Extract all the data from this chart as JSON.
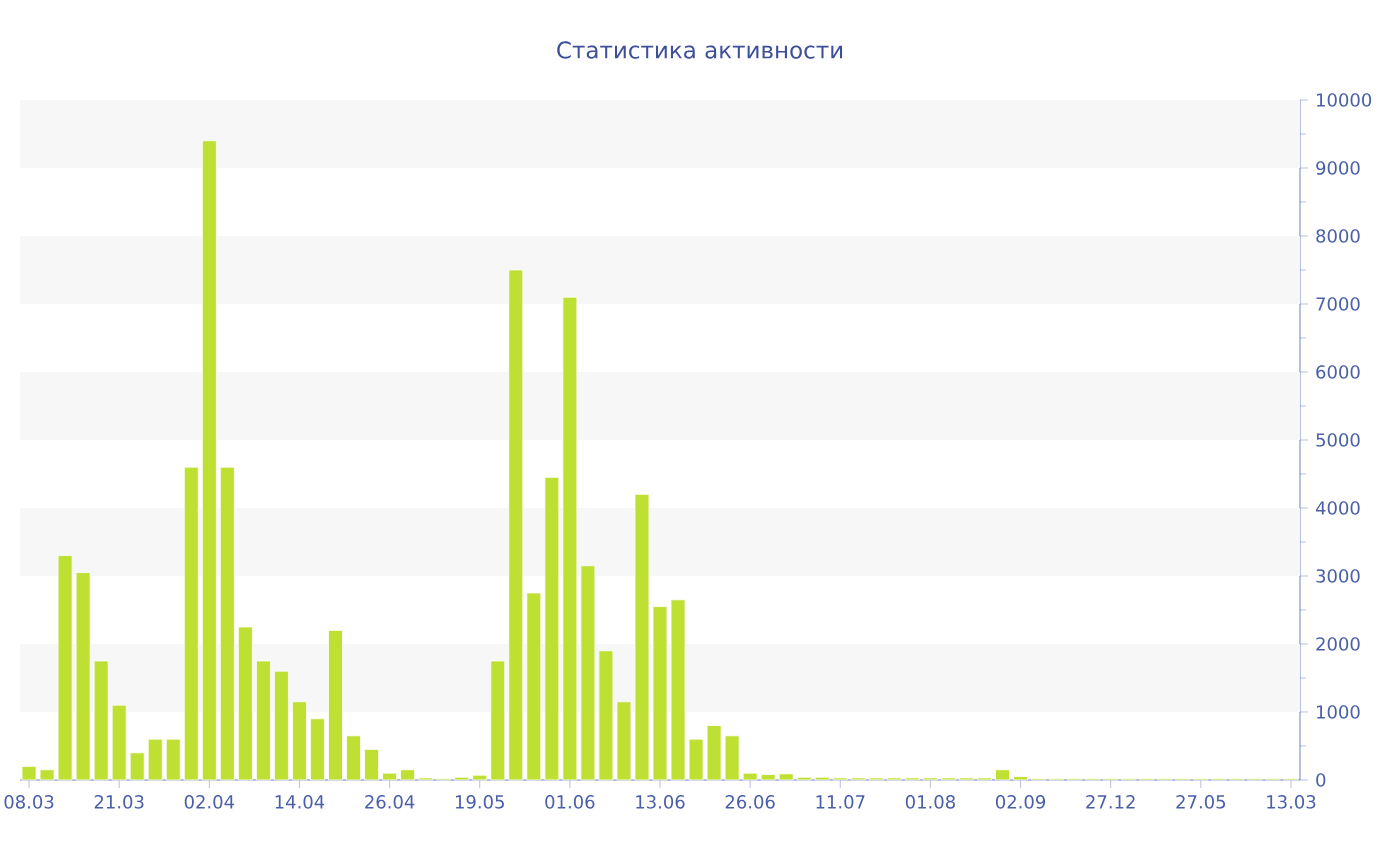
{
  "chart_data": {
    "type": "bar",
    "title": "Статистика активности",
    "categories": [
      "08.03",
      null,
      null,
      null,
      null,
      "21.03",
      null,
      null,
      null,
      null,
      "02.04",
      null,
      null,
      null,
      null,
      "14.04",
      null,
      null,
      null,
      null,
      "26.04",
      null,
      null,
      null,
      null,
      "19.05",
      null,
      null,
      null,
      null,
      "01.06",
      null,
      null,
      null,
      null,
      "13.06",
      null,
      null,
      null,
      null,
      "26.06",
      null,
      null,
      null,
      null,
      "11.07",
      null,
      null,
      null,
      null,
      "01.08",
      null,
      null,
      null,
      null,
      "02.09",
      null,
      null,
      null,
      null,
      "27.12",
      null,
      null,
      null,
      null,
      "27.05",
      null,
      null,
      null,
      null,
      "13.03"
    ],
    "values": [
      200,
      150,
      3300,
      3050,
      1750,
      1100,
      400,
      600,
      600,
      4600,
      9400,
      4600,
      2250,
      1750,
      1600,
      1150,
      900,
      2200,
      650,
      450,
      100,
      150,
      30,
      20,
      40,
      70,
      1750,
      7500,
      2750,
      4450,
      7100,
      3150,
      1900,
      1150,
      4200,
      2550,
      2650,
      600,
      800,
      650,
      100,
      80,
      90,
      40,
      40,
      30,
      30,
      30,
      30,
      30,
      30,
      30,
      30,
      30,
      150,
      50,
      20,
      20,
      20,
      20,
      20,
      20,
      20,
      20,
      20,
      20,
      20,
      20,
      20,
      20,
      20
    ],
    "color": "#bde033",
    "ylim": [
      0,
      10000
    ],
    "yticks": [
      0,
      1000,
      2000,
      3000,
      4000,
      5000,
      6000,
      7000,
      8000,
      9000,
      10000
    ],
    "bands": [
      {
        "axis": "y",
        "from": 1000,
        "to": 2000,
        "color": "#f7f7f7"
      },
      {
        "axis": "y",
        "from": 3000,
        "to": 4000,
        "color": "#f7f7f7"
      },
      {
        "axis": "y",
        "from": 5000,
        "to": 6000,
        "color": "#f7f7f7"
      },
      {
        "axis": "y",
        "from": 7000,
        "to": 8000,
        "color": "#f7f7f7"
      },
      {
        "axis": "y",
        "from": 9000,
        "to": 10000,
        "color": "#f7f7f7"
      }
    ]
  }
}
